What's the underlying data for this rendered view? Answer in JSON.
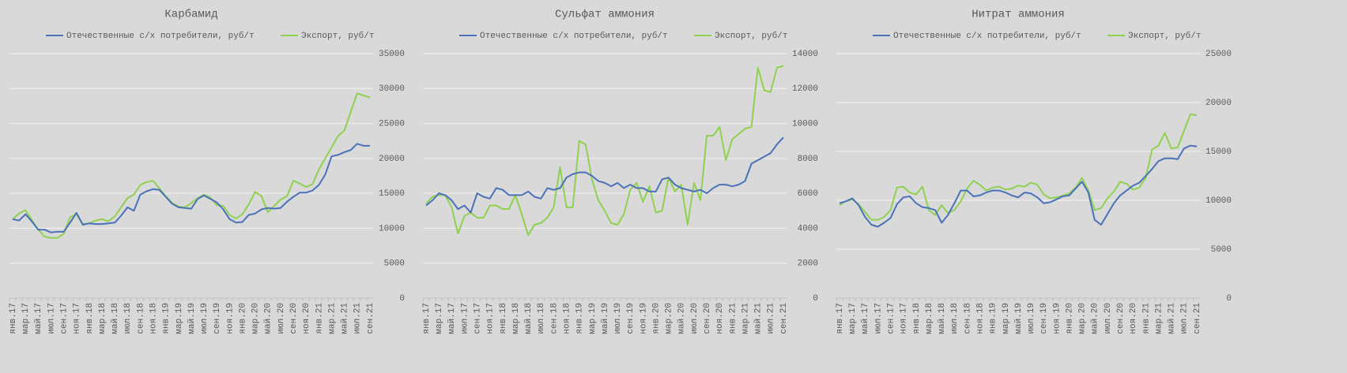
{
  "chart_data": [
    {
      "type": "line",
      "title": "Карбамид",
      "categories": [
        "янв.17",
        null,
        "мар.17",
        null,
        "май.17",
        null,
        "июл.17",
        null,
        "сен.17",
        null,
        "ноя.17",
        null,
        "янв.18",
        null,
        "мар.18",
        null,
        "май.18",
        null,
        "июл.18",
        null,
        "сен.18",
        null,
        "ноя.18",
        null,
        "янв.19",
        null,
        "мар.19",
        null,
        "май.19",
        null,
        "июл.19",
        null,
        "сен.19",
        null,
        "ноя.19",
        null,
        "янв.20",
        null,
        "мар.20",
        null,
        "май.20",
        null,
        "июл.20",
        null,
        "сен.20",
        null,
        "ноя.20",
        null,
        "янв.21",
        null,
        "мар.21",
        null,
        "май.21",
        null,
        "июл.21",
        null,
        "сен.21"
      ],
      "series": [
        {
          "name": "Отечественные с/х потребители, руб/т",
          "color": "#4a72b8",
          "values": [
            11300,
            11100,
            12000,
            11000,
            9800,
            9800,
            9400,
            9500,
            9500,
            10800,
            12200,
            10500,
            10700,
            10600,
            10600,
            10700,
            10800,
            11800,
            13000,
            12500,
            14800,
            15300,
            15600,
            15500,
            14500,
            13500,
            13000,
            12900,
            12800,
            14200,
            14700,
            14200,
            13700,
            12700,
            11300,
            10800,
            10900,
            11900,
            12100,
            12700,
            12900,
            12800,
            12900,
            13800,
            14500,
            15100,
            15100,
            15400,
            16200,
            17700,
            20300,
            20500,
            20900,
            21200,
            22100,
            21800,
            21800
          ]
        },
        {
          "name": "Экспорт, руб/т",
          "color": "#8fd14f",
          "values": [
            11300,
            12100,
            12600,
            11200,
            9800,
            8800,
            8600,
            8600,
            9200,
            11600,
            12000,
            10600,
            10700,
            11100,
            11300,
            11000,
            11700,
            13000,
            14300,
            14800,
            16200,
            16600,
            16800,
            15700,
            14600,
            13600,
            13100,
            13000,
            13600,
            14300,
            14800,
            14400,
            13300,
            13200,
            11900,
            11400,
            12000,
            13400,
            15200,
            14600,
            12300,
            13200,
            14100,
            14600,
            16800,
            16400,
            15900,
            16300,
            18400,
            20000,
            21600,
            23200,
            24000,
            26700,
            29300,
            29000,
            28700
          ]
        }
      ],
      "ylim": [
        0,
        35000
      ],
      "yticks": [
        0,
        5000,
        10000,
        15000,
        20000,
        25000,
        30000,
        35000
      ],
      "grid": true
    },
    {
      "type": "line",
      "title": "Сульфат аммония",
      "categories": [
        "янв.17",
        null,
        "мар.17",
        null,
        "май.17",
        null,
        "июл.17",
        null,
        "сен.17",
        null,
        "ноя.17",
        null,
        "янв.18",
        null,
        "мар.18",
        null,
        "май.18",
        null,
        "июл.18",
        null,
        "сен.18",
        null,
        "ноя.18",
        null,
        "янв.19",
        null,
        "мар.19",
        null,
        "май.19",
        null,
        "июл.19",
        null,
        "сен.19",
        null,
        "ноя.19",
        null,
        "янв.20",
        null,
        "мар.20",
        null,
        "май.20",
        null,
        "июл.20",
        null,
        "сен.20",
        null,
        "ноя.20",
        null,
        "янв.21",
        null,
        "мар.21",
        null,
        "май.21",
        null,
        "июл.21",
        null,
        "сен.21"
      ],
      "series": [
        {
          "name": "Отечественные с/х потребители, руб/т",
          "color": "#4a72b8",
          "values": [
            5300,
            5600,
            6000,
            5900,
            5600,
            5100,
            5300,
            4900,
            6000,
            5800,
            5700,
            6300,
            6200,
            5900,
            5900,
            5900,
            6100,
            5800,
            5700,
            6300,
            6200,
            6300,
            6900,
            7100,
            7200,
            7200,
            7000,
            6700,
            6600,
            6400,
            6600,
            6300,
            6500,
            6300,
            6300,
            6100,
            6100,
            6800,
            6900,
            6500,
            6300,
            6200,
            6100,
            6200,
            6000,
            6300,
            6500,
            6500,
            6400,
            6500,
            6700,
            7700,
            7900,
            8100,
            8300,
            8800,
            9200
          ]
        },
        {
          "name": "Экспорт, руб/т",
          "color": "#8fd14f",
          "values": [
            5400,
            5800,
            5900,
            5900,
            5200,
            3700,
            4700,
            4900,
            4600,
            4600,
            5300,
            5300,
            5100,
            5100,
            5900,
            4800,
            3600,
            4200,
            4300,
            4600,
            5200,
            7500,
            5200,
            5200,
            9000,
            8800,
            6800,
            5600,
            5000,
            4300,
            4200,
            4800,
            6200,
            6600,
            5500,
            6400,
            4900,
            5000,
            6900,
            6100,
            6500,
            4200,
            6600,
            5600,
            9300,
            9300,
            9800,
            7900,
            9100,
            9400,
            9700,
            9800,
            13200,
            11900,
            11800,
            13200,
            13300
          ]
        }
      ],
      "ylim": [
        0,
        14000
      ],
      "yticks": [
        0,
        2000,
        4000,
        6000,
        8000,
        10000,
        12000,
        14000
      ],
      "grid": true
    },
    {
      "type": "line",
      "title": "Нитрат аммония",
      "categories": [
        "янв.17",
        null,
        "мар.17",
        null,
        "май.17",
        null,
        "июл.17",
        null,
        "сен.17",
        null,
        "ноя.17",
        null,
        "янв.18",
        null,
        "мар.18",
        null,
        "май.18",
        null,
        "июл.18",
        null,
        "сен.18",
        null,
        "ноя.18",
        null,
        "янв.19",
        null,
        "мар.19",
        null,
        "май.19",
        null,
        "июл.19",
        null,
        "сен.19",
        null,
        "ноя.19",
        null,
        "янв.20",
        null,
        "мар.20",
        null,
        "май.20",
        null,
        "июл.20",
        null,
        "сен.20",
        null,
        "ноя.20",
        null,
        "янв.21",
        null,
        "мар.21",
        null,
        "май.21",
        null,
        "июл.21",
        null,
        "сен.21"
      ],
      "series": [
        {
          "name": "Отечественные с/х потребители, руб/т",
          "color": "#4a72b8",
          "values": [
            9700,
            9900,
            10200,
            9500,
            8300,
            7500,
            7300,
            7700,
            8200,
            9600,
            10300,
            10400,
            9700,
            9300,
            9200,
            9000,
            7700,
            8500,
            9700,
            11000,
            11000,
            10400,
            10500,
            10800,
            11000,
            11000,
            10800,
            10500,
            10300,
            10800,
            10700,
            10300,
            9700,
            9800,
            10100,
            10400,
            10500,
            11200,
            11900,
            10800,
            8000,
            7500,
            8600,
            9700,
            10500,
            11000,
            11500,
            11800,
            12500,
            13200,
            14000,
            14300,
            14300,
            14200,
            15300,
            15600,
            15500
          ]
        },
        {
          "name": "Экспорт, руб/т",
          "color": "#8fd14f",
          "values": [
            9500,
            9900,
            10100,
            9600,
            8800,
            8000,
            8000,
            8300,
            9000,
            11300,
            11400,
            10800,
            10600,
            11400,
            9000,
            8500,
            9500,
            8700,
            9000,
            9900,
            11200,
            12000,
            11600,
            11000,
            11300,
            11400,
            11100,
            11200,
            11500,
            11400,
            11800,
            11600,
            10600,
            10200,
            10300,
            10500,
            10700,
            11300,
            12300,
            11000,
            9000,
            9200,
            10200,
            10900,
            11900,
            11700,
            11100,
            11300,
            12300,
            15200,
            15600,
            16900,
            15300,
            15400,
            17100,
            18800,
            18700
          ]
        }
      ],
      "ylim": [
        0,
        25000
      ],
      "yticks": [
        0,
        5000,
        10000,
        15000,
        20000,
        25000
      ],
      "grid": true
    }
  ]
}
